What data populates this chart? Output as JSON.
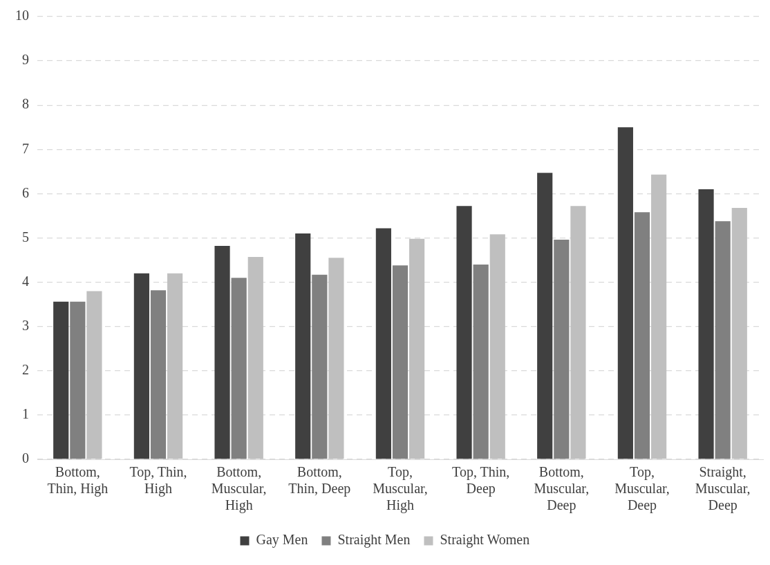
{
  "chart_data": {
    "type": "bar",
    "categories": [
      "Bottom, Thin, High",
      "Top, Thin, High",
      "Bottom, Muscular, High",
      "Bottom, Thin, Deep",
      "Top, Muscular, High",
      "Top, Thin, Deep",
      "Bottom, Muscular, Deep",
      "Top, Muscular, Deep",
      "Straight, Muscular, Deep"
    ],
    "series": [
      {
        "name": "Gay Men",
        "color": "#404040",
        "values": [
          3.56,
          4.2,
          4.82,
          5.1,
          5.22,
          5.72,
          6.47,
          7.5,
          6.1
        ]
      },
      {
        "name": "Straight Men",
        "color": "#808080",
        "values": [
          3.56,
          3.82,
          4.1,
          4.17,
          4.38,
          4.4,
          4.96,
          5.58,
          5.38
        ]
      },
      {
        "name": "Straight Women",
        "color": "#bfbfbf",
        "values": [
          3.8,
          4.2,
          4.57,
          4.55,
          4.98,
          5.08,
          5.72,
          6.43,
          5.68
        ]
      }
    ],
    "ylim": [
      0,
      10
    ],
    "yticks": [
      0,
      1,
      2,
      3,
      4,
      5,
      6,
      7,
      8,
      9,
      10
    ],
    "grid": "y",
    "legend": "bottom"
  }
}
